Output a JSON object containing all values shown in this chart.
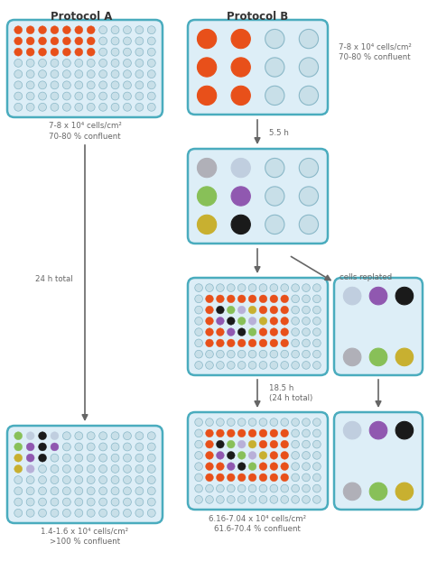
{
  "fig_width": 4.74,
  "fig_height": 6.22,
  "bg_color": "#ffffff",
  "plate_bg": "#ddeef7",
  "plate_border": "#4aacbe",
  "well_empty": "#c8dfe8",
  "well_empty_border": "#8ab8c8",
  "orange_red": "#e8501a",
  "gray_well": "#a0a0a8",
  "light_blue_well": "#c0cedf",
  "green_well": "#88c058",
  "purple_well": "#9058b0",
  "yellow_well": "#c8b030",
  "black_well": "#1a1a1a",
  "light_purple_well": "#b8b0d8",
  "light_gray_well": "#b0b0b8",
  "text_color": "#666666",
  "arrow_color": "#666666",
  "title_A": "Protocol A",
  "title_B": "Protocol B",
  "label_top": "7-8 x 10⁴ cells/cm²\n70-80 % confluent",
  "label_24h": "24 h total",
  "label_55h": "5.5 h",
  "label_185h": "18.5 h\n(24 h total)",
  "label_cells_replated": "cells replated",
  "label_bottom_A": "1.4-1.6 x 10⁴ cells/cm²\n>100 % confluent",
  "label_bottom_B": "6.16-7.04 x 10⁴ cells/cm²\n61.6-70.4 % confluent"
}
